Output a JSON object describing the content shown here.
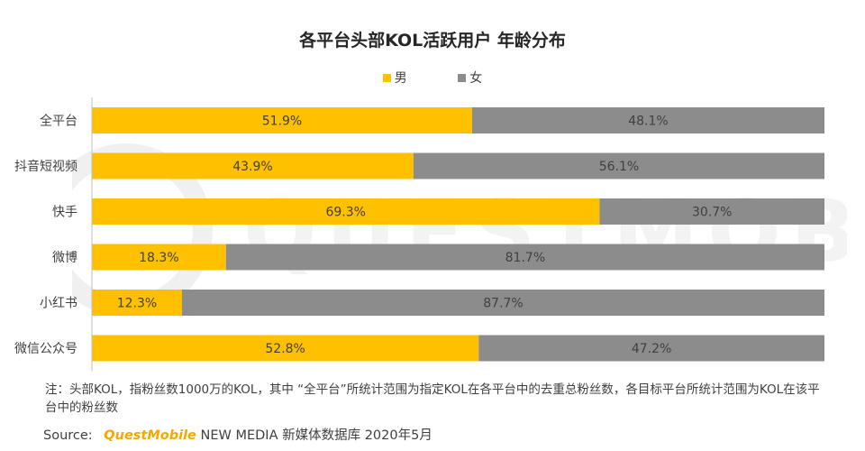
{
  "chart_data": {
    "type": "bar",
    "orientation": "horizontal-stacked-100",
    "title": "各平台头部KOL活跃用户 年龄分布",
    "categories": [
      "全平台",
      "抖音短视频",
      "快手",
      "微博",
      "小红书",
      "微信公众号"
    ],
    "series": [
      {
        "name": "男",
        "values": [
          51.9,
          43.9,
          69.3,
          18.3,
          12.3,
          52.8
        ],
        "labels": [
          "51.9%",
          "43.9%",
          "69.3%",
          "18.3%",
          "12.3%",
          "52.8%"
        ],
        "color": "#FFC000"
      },
      {
        "name": "女",
        "values": [
          48.1,
          56.1,
          30.7,
          81.7,
          87.7,
          47.2
        ],
        "labels": [
          "48.1%",
          "56.1%",
          "30.7%",
          "81.7%",
          "87.7%",
          "47.2%"
        ],
        "color": "#8C8C8C"
      }
    ],
    "xlim": [
      0,
      100
    ],
    "legend": "top-center"
  },
  "footer": {
    "note": "注：头部KOL，指粉丝数1000万的KOL，其中 “全平台”所统计范围为指定KOL在各平台中的去重总粉丝数，各目标平台所统计范围为KOL在该平台中的粉丝数",
    "source_label": "Source:",
    "source_brand": "QuestMobile",
    "source_rest": "NEW MEDIA 新媒体数据库 2020年5月"
  },
  "watermark_text": "QUESTMOBILE"
}
